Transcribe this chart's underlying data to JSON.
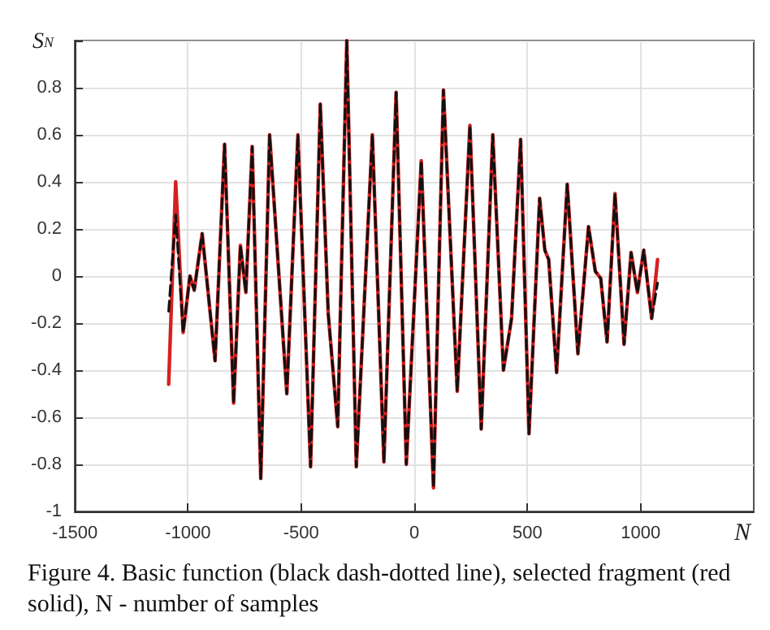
{
  "chart_data": {
    "type": "line",
    "xlabel": "N",
    "ylabel": "S$_{N}$",
    "xlim": [
      -1500,
      1500
    ],
    "xticks": [
      -1500,
      -1000,
      -500,
      0,
      500,
      1000
    ],
    "ylim": [
      -1,
      1
    ],
    "yticks": [
      -1,
      -0.8,
      -0.6,
      -0.4,
      -0.2,
      0,
      0.2,
      0.4,
      0.6,
      0.8,
      {
        "value": 1,
        "label": null
      }
    ],
    "grid": true,
    "marker": "none",
    "series": [
      {
        "color": "#d62020",
        "line_style": "solid",
        "x": [
          -1085,
          -1054,
          -1021,
          -991,
          -972,
          -937,
          -880,
          -838,
          -798,
          -768,
          -744,
          -716,
          -678,
          -639,
          -563,
          -514,
          -458,
          -415,
          -380,
          -338,
          -298,
          -256,
          -185,
          -134,
          -80,
          -35,
          31,
          85,
          129,
          190,
          246,
          296,
          347,
          394,
          430,
          470,
          507,
          554,
          577,
          594,
          629,
          676,
          723,
          770,
          800,
          824,
          852,
          887,
          927,
          958,
          986,
          1014,
          1049,
          1075
        ],
        "values": [
          -0.46,
          0.4,
          -0.24,
          0.0,
          -0.06,
          0.18,
          -0.36,
          0.56,
          -0.54,
          0.13,
          -0.07,
          0.55,
          -0.86,
          0.6,
          -0.5,
          0.6,
          -0.81,
          0.73,
          -0.16,
          -0.64,
          1.0,
          -0.81,
          0.6,
          -0.79,
          0.78,
          -0.8,
          0.49,
          -0.9,
          0.79,
          -0.49,
          0.64,
          -0.65,
          0.6,
          -0.4,
          -0.18,
          0.58,
          -0.67,
          0.33,
          0.11,
          0.07,
          -0.41,
          0.39,
          -0.33,
          0.21,
          0.02,
          -0.01,
          -0.28,
          0.35,
          -0.29,
          0.1,
          -0.07,
          0.11,
          -0.18,
          0.07
        ]
      },
      {
        "color": "#111111",
        "line_style": "dashed",
        "x": [
          -1085,
          -1054,
          -1021,
          -991,
          -972,
          -937,
          -880,
          -838,
          -798,
          -768,
          -744,
          -716,
          -678,
          -639,
          -563,
          -514,
          -458,
          -415,
          -380,
          -338,
          -298,
          -256,
          -185,
          -134,
          -80,
          -35,
          31,
          85,
          129,
          190,
          246,
          296,
          347,
          394,
          430,
          470,
          507,
          554,
          577,
          594,
          629,
          676,
          723,
          770,
          800,
          824,
          852,
          887,
          927,
          958,
          986,
          1014,
          1049,
          1075
        ],
        "values": [
          -0.15,
          0.26,
          -0.24,
          0.0,
          -0.06,
          0.18,
          -0.36,
          0.56,
          -0.54,
          0.13,
          -0.07,
          0.55,
          -0.86,
          0.6,
          -0.5,
          0.6,
          -0.81,
          0.73,
          -0.16,
          -0.64,
          1.0,
          -0.81,
          0.6,
          -0.79,
          0.78,
          -0.8,
          0.49,
          -0.9,
          0.79,
          -0.49,
          0.64,
          -0.65,
          0.6,
          -0.4,
          -0.18,
          0.58,
          -0.67,
          0.33,
          0.11,
          0.07,
          -0.41,
          0.39,
          -0.33,
          0.21,
          0.02,
          -0.01,
          -0.28,
          0.35,
          -0.29,
          0.1,
          -0.07,
          0.11,
          -0.18,
          -0.03
        ]
      }
    ],
    "annotations": [
      "Figure 4. Basic function (black dash-dotted line), selected fragment (red solid), N - number of samples"
    ]
  }
}
